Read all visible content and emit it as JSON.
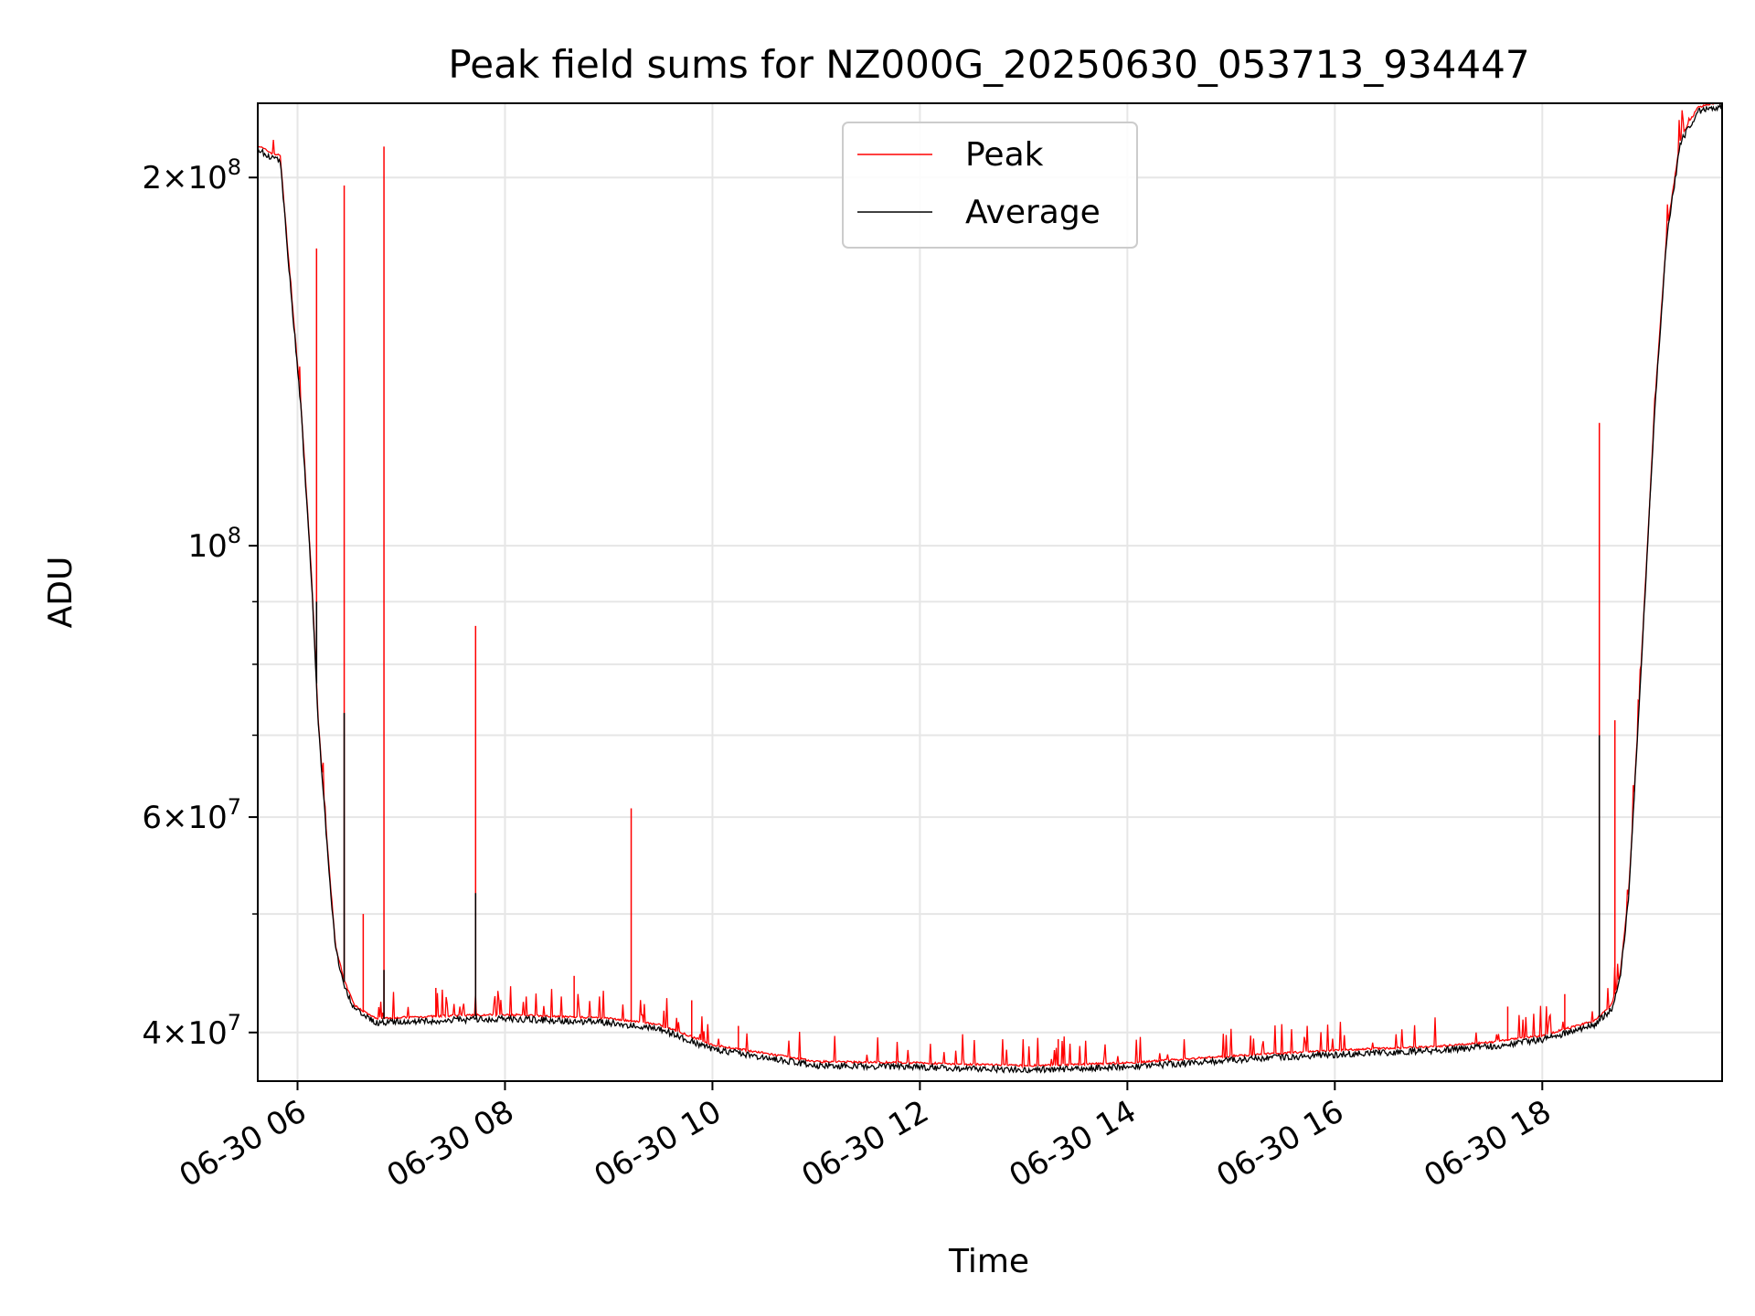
{
  "chart_data": {
    "type": "line",
    "title": "Peak field sums for NZ000G_20250630_053713_934447",
    "xlabel": "Time",
    "ylabel": "ADU",
    "x_range": [
      "2025-06-30 05:37",
      "2025-06-30 19:44"
    ],
    "ylim": [
      36500000,
      230000000
    ],
    "y_scale": "log",
    "grid": true,
    "legend_position": "upper center",
    "x_ticks": [
      {
        "t": "2025-06-30 06:00",
        "label": "06-30 06"
      },
      {
        "t": "2025-06-30 08:00",
        "label": "06-30 08"
      },
      {
        "t": "2025-06-30 10:00",
        "label": "06-30 10"
      },
      {
        "t": "2025-06-30 12:00",
        "label": "06-30 12"
      },
      {
        "t": "2025-06-30 14:00",
        "label": "06-30 14"
      },
      {
        "t": "2025-06-30 16:00",
        "label": "06-30 16"
      },
      {
        "t": "2025-06-30 18:00",
        "label": "06-30 18"
      }
    ],
    "y_major_ticks": [
      {
        "v": 40000000,
        "mant": "4",
        "exp": "7"
      },
      {
        "v": 60000000,
        "mant": "6",
        "exp": "7"
      },
      {
        "v": 100000000,
        "mant": "",
        "exp": "8"
      },
      {
        "v": 200000000,
        "mant": "2",
        "exp": "8"
      }
    ],
    "y_minor_ticks": [
      50000000,
      70000000,
      80000000,
      90000000
    ],
    "series": [
      {
        "name": "Peak",
        "color": "#ff0000",
        "baseline": [
          [
            "2025-06-30 05:37",
            212000000
          ],
          [
            "2025-06-30 05:45",
            209000000
          ],
          [
            "2025-06-30 05:50",
            208000000
          ],
          [
            "2025-06-30 05:55",
            170000000
          ],
          [
            "2025-06-30 06:02",
            130000000
          ],
          [
            "2025-06-30 06:08",
            95000000
          ],
          [
            "2025-06-30 06:12",
            72000000
          ],
          [
            "2025-06-30 06:18",
            55000000
          ],
          [
            "2025-06-30 06:22",
            47000000
          ],
          [
            "2025-06-30 06:27",
            44000000
          ],
          [
            "2025-06-30 06:33",
            42000000
          ],
          [
            "2025-06-30 06:45",
            41000000
          ],
          [
            "2025-06-30 07:30",
            41200000
          ],
          [
            "2025-06-30 08:00",
            41300000
          ],
          [
            "2025-06-30 09:00",
            41000000
          ],
          [
            "2025-06-30 09:30",
            40500000
          ],
          [
            "2025-06-30 10:00",
            39000000
          ],
          [
            "2025-06-30 11:00",
            37800000
          ],
          [
            "2025-06-30 12:00",
            37700000
          ],
          [
            "2025-06-30 13:00",
            37500000
          ],
          [
            "2025-06-30 14:00",
            37700000
          ],
          [
            "2025-06-30 15:00",
            38200000
          ],
          [
            "2025-06-30 16:00",
            38600000
          ],
          [
            "2025-06-30 17:00",
            38900000
          ],
          [
            "2025-06-30 17:30",
            39200000
          ],
          [
            "2025-06-30 18:00",
            39700000
          ],
          [
            "2025-06-30 18:30",
            40800000
          ],
          [
            "2025-06-30 18:40",
            42000000
          ],
          [
            "2025-06-30 18:45",
            44500000
          ],
          [
            "2025-06-30 18:50",
            52000000
          ],
          [
            "2025-06-30 18:55",
            70000000
          ],
          [
            "2025-06-30 19:00",
            95000000
          ],
          [
            "2025-06-30 19:05",
            130000000
          ],
          [
            "2025-06-30 19:12",
            180000000
          ],
          [
            "2025-06-30 19:20",
            215000000
          ],
          [
            "2025-06-30 19:30",
            228000000
          ],
          [
            "2025-06-30 19:44",
            230000000
          ]
        ],
        "spikes": [
          [
            "2025-06-30 06:11",
            175000000
          ],
          [
            "2025-06-30 06:27",
            197000000
          ],
          [
            "2025-06-30 06:38",
            50000000
          ],
          [
            "2025-06-30 06:50",
            212000000
          ],
          [
            "2025-06-30 07:20",
            43500000
          ],
          [
            "2025-06-30 07:43",
            86000000
          ],
          [
            "2025-06-30 08:40",
            44500000
          ],
          [
            "2025-06-30 09:13",
            61000000
          ],
          [
            "2025-06-30 09:48",
            42500000
          ],
          [
            "2025-06-30 10:15",
            40500000
          ],
          [
            "2025-06-30 13:20",
            39500000
          ],
          [
            "2025-06-30 17:40",
            42000000
          ],
          [
            "2025-06-30 18:13",
            43000000
          ],
          [
            "2025-06-30 18:33",
            126000000
          ],
          [
            "2025-06-30 18:42",
            72000000
          ]
        ]
      },
      {
        "name": "Average",
        "color": "#000000",
        "same_as": "Peak.baseline",
        "spikes": [
          [
            "2025-06-30 06:11",
            90000000
          ],
          [
            "2025-06-30 06:27",
            73000000
          ],
          [
            "2025-06-30 06:50",
            45000000
          ],
          [
            "2025-06-30 07:43",
            52000000
          ],
          [
            "2025-06-30 18:33",
            70000000
          ]
        ]
      }
    ]
  }
}
